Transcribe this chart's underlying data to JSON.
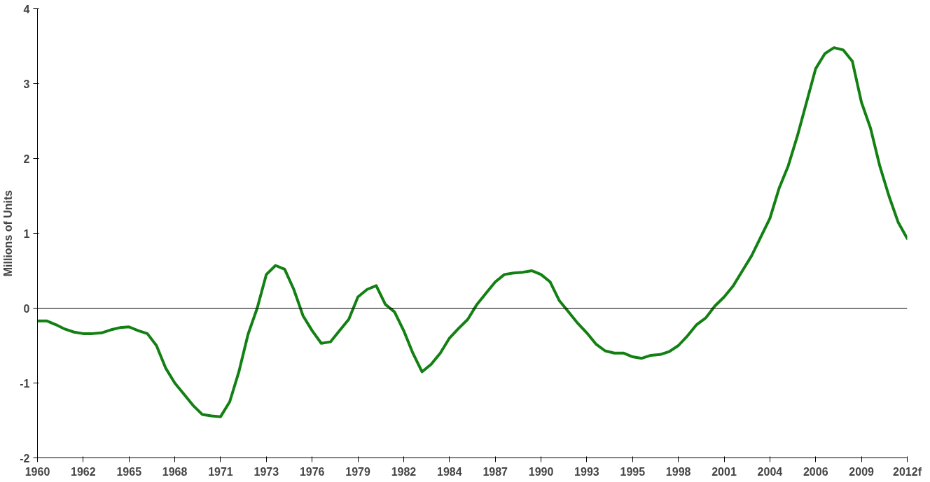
{
  "chart_data": {
    "type": "line",
    "ylabel": "Millions of Units",
    "categories": [
      "1960",
      null,
      null,
      null,
      null,
      "1962",
      null,
      null,
      null,
      null,
      "1965",
      null,
      null,
      null,
      null,
      "1968",
      null,
      null,
      null,
      null,
      "1971",
      null,
      null,
      null,
      null,
      "1973",
      null,
      null,
      null,
      null,
      "1976",
      null,
      null,
      null,
      null,
      "1979",
      null,
      null,
      null,
      null,
      "1982",
      null,
      null,
      null,
      null,
      "1984",
      null,
      null,
      null,
      null,
      "1987",
      null,
      null,
      null,
      null,
      "1990",
      null,
      null,
      null,
      null,
      "1993",
      null,
      null,
      null,
      null,
      "1995",
      null,
      null,
      null,
      null,
      "1998",
      null,
      null,
      null,
      null,
      "2001",
      null,
      null,
      null,
      null,
      "2004",
      null,
      null,
      null,
      null,
      "2006",
      null,
      null,
      null,
      null,
      "2009",
      null,
      null,
      null,
      null,
      "2012f"
    ],
    "series": [
      {
        "color": "#138013",
        "values": [
          -0.17,
          -0.17,
          -0.22,
          -0.28,
          -0.32,
          -0.34,
          -0.34,
          -0.33,
          -0.29,
          -0.26,
          -0.25,
          -0.3,
          -0.34,
          -0.5,
          -0.8,
          -1.0,
          -1.15,
          -1.3,
          -1.42,
          -1.44,
          -1.45,
          -1.25,
          -0.85,
          -0.35,
          0.0,
          0.45,
          0.57,
          0.52,
          0.25,
          -0.1,
          -0.3,
          -0.47,
          -0.45,
          -0.3,
          -0.15,
          0.15,
          0.25,
          0.3,
          0.05,
          -0.05,
          -0.3,
          -0.6,
          -0.85,
          -0.75,
          -0.6,
          -0.4,
          -0.27,
          -0.15,
          0.05,
          0.2,
          0.35,
          0.45,
          0.47,
          0.48,
          0.5,
          0.45,
          0.35,
          0.1,
          -0.05,
          -0.2,
          -0.33,
          -0.48,
          -0.57,
          -0.6,
          -0.6,
          -0.65,
          -0.67,
          -0.63,
          -0.62,
          -0.58,
          -0.5,
          -0.37,
          -0.22,
          -0.13,
          0.03,
          0.15,
          0.3,
          0.5,
          0.7,
          0.95,
          1.2,
          1.6,
          1.9,
          2.3,
          2.75,
          3.2,
          3.4,
          3.48,
          3.45,
          3.3,
          2.75,
          2.4,
          1.9,
          1.5,
          1.15,
          0.93
        ]
      }
    ],
    "ylim": [
      -2,
      4
    ],
    "yticks": [
      -2,
      -1,
      0,
      1,
      2,
      3,
      4
    ],
    "ref_lines": [
      {
        "axis": "y",
        "value": 0,
        "color": "#000000"
      }
    ],
    "grid": false
  }
}
